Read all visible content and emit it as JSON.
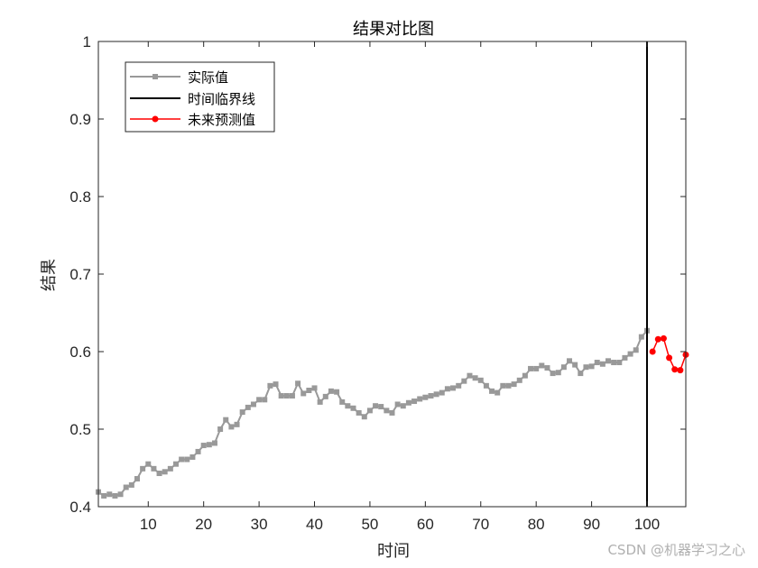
{
  "chart_data": {
    "type": "line",
    "title": "结果对比图",
    "xlabel": "时间",
    "ylabel": "结果",
    "xlim": [
      1,
      107
    ],
    "ylim": [
      0.4,
      1
    ],
    "xticks": [
      10,
      20,
      30,
      40,
      50,
      60,
      70,
      80,
      90,
      100
    ],
    "yticks": [
      0.4,
      0.5,
      0.6,
      0.7,
      0.8,
      0.9,
      1
    ],
    "ytick_labels": [
      "0.4",
      "0.5",
      "0.6",
      "0.7",
      "0.8",
      "0.9",
      "1"
    ],
    "grid": false,
    "legend_position": "top-left",
    "series": [
      {
        "name": "实际值",
        "color": "#999999",
        "marker": "square",
        "x_start": 1,
        "values": [
          0.419,
          0.414,
          0.416,
          0.414,
          0.416,
          0.425,
          0.428,
          0.436,
          0.449,
          0.455,
          0.449,
          0.443,
          0.445,
          0.449,
          0.455,
          0.461,
          0.461,
          0.464,
          0.471,
          0.479,
          0.48,
          0.482,
          0.5,
          0.512,
          0.503,
          0.506,
          0.522,
          0.528,
          0.532,
          0.538,
          0.538,
          0.556,
          0.558,
          0.543,
          0.543,
          0.543,
          0.559,
          0.546,
          0.55,
          0.553,
          0.535,
          0.542,
          0.549,
          0.548,
          0.535,
          0.53,
          0.527,
          0.521,
          0.516,
          0.524,
          0.53,
          0.529,
          0.524,
          0.521,
          0.532,
          0.53,
          0.534,
          0.536,
          0.539,
          0.541,
          0.543,
          0.545,
          0.547,
          0.552,
          0.553,
          0.556,
          0.562,
          0.569,
          0.566,
          0.563,
          0.556,
          0.549,
          0.547,
          0.556,
          0.556,
          0.558,
          0.563,
          0.569,
          0.578,
          0.578,
          0.582,
          0.579,
          0.572,
          0.573,
          0.58,
          0.588,
          0.583,
          0.572,
          0.58,
          0.581,
          0.586,
          0.584,
          0.588,
          0.586,
          0.586,
          0.592,
          0.597,
          0.602,
          0.619,
          0.627
        ]
      },
      {
        "name": "时间临界线",
        "color": "#000000",
        "vertical_x": 100
      },
      {
        "name": "未来预测值",
        "color": "#ff0000",
        "marker": "circle",
        "x": [
          101,
          102,
          103,
          104,
          105,
          106,
          107
        ],
        "values": [
          0.6,
          0.616,
          0.617,
          0.592,
          0.577,
          0.576,
          0.596
        ]
      }
    ]
  },
  "watermark": "CSDN @机器学习之心"
}
